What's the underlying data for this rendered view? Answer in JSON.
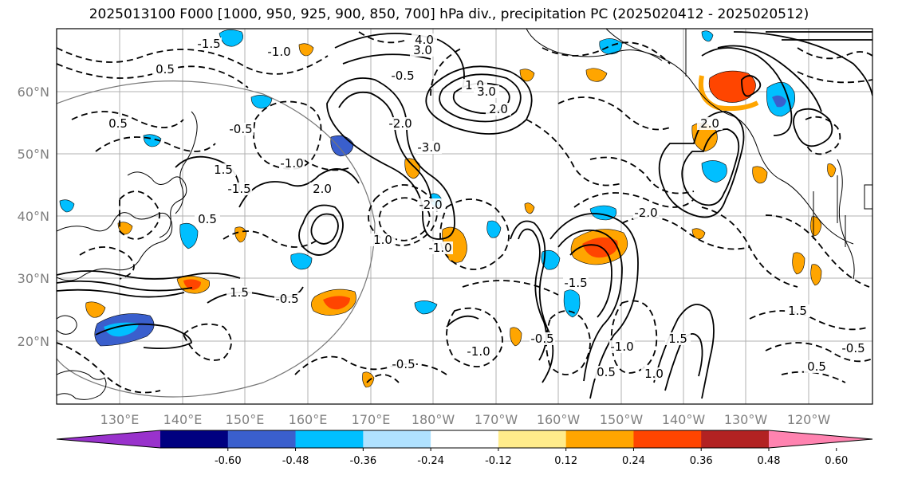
{
  "title": "2025013100 F000 [1000, 950, 925, 900, 850, 700] hPa div., precipitation PC (2025020412 - 2025020512)",
  "lat_labels": [
    "60°N",
    "50°N",
    "40°N",
    "30°N",
    "20°N"
  ],
  "lon_labels": [
    "130°E",
    "140°E",
    "150°E",
    "160°E",
    "170°E",
    "180°W",
    "170°W",
    "160°W",
    "150°W",
    "140°W",
    "130°W",
    "120°W"
  ],
  "colorbar": {
    "colors": [
      "#9932cc",
      "#000080",
      "#3a5fcd",
      "#00bfff",
      "#b0e2ff",
      "#ffffff",
      "#ffec8b",
      "#ffa500",
      "#ff4500",
      "#b22222",
      "#ff83b0"
    ],
    "tick_labels": [
      "-0.60",
      "-0.48",
      "-0.36",
      "-0.24",
      "-0.12",
      "0.12",
      "0.24",
      "0.36",
      "0.48",
      "0.60"
    ]
  },
  "contour_labels": [
    "-1.5",
    "-1.0",
    "0.5",
    "4.0",
    "3.0",
    "-0.5",
    "1.0",
    "2.0",
    "-2.0",
    "-0.5",
    "0.5",
    "-1.0",
    "1.5",
    "-1.5",
    "3.0",
    "-3.0",
    "-2.0",
    "2.0",
    "0.5",
    "1.0",
    "-0.5",
    "1.5",
    "-1.0",
    "-0.5",
    "-0.5",
    "-1.5",
    "-1.0",
    "0.5",
    "1.0",
    "1.5",
    "2.0",
    "-2.0",
    "-1.0",
    "0.5",
    "1.5",
    "-0.5"
  ]
}
